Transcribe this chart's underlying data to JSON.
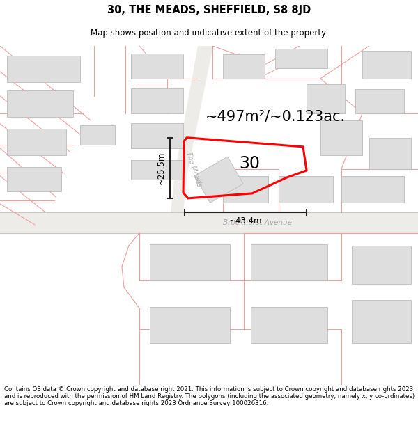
{
  "title": "30, THE MEADS, SHEFFIELD, S8 8JD",
  "subtitle": "Map shows position and indicative extent of the property.",
  "area_label": "~497m²/~0.123ac.",
  "number_label": "30",
  "dim_h": "~25.5m",
  "dim_w": "~43.4m",
  "street_label_v": "The Meads",
  "street_label_h": "Brockhurst Avenue",
  "footer": "Contains OS data © Crown copyright and database right 2021. This information is subject to Crown copyright and database rights 2023 and is reproduced with the permission of HM Land Registry. The polygons (including the associated geometry, namely x, y co-ordinates) are subject to Crown copyright and database rights 2023 Ordnance Survey 100026316.",
  "map_bg": "#ffffff",
  "road_fill": "#eeece8",
  "building_fill": "#dedede",
  "building_edge": "#bcbcbc",
  "plot_color": "#ff0000",
  "plot_lw": 2.2,
  "pink": "#f0a0a0",
  "road_gray": "#c8c8c0",
  "dim_color": "#222222",
  "title_fontsize": 10.5,
  "subtitle_fontsize": 8.5,
  "area_fontsize": 15,
  "num_fontsize": 17,
  "dim_fontsize": 8.5,
  "street_fontsize": 7,
  "footer_fontsize": 6.2
}
